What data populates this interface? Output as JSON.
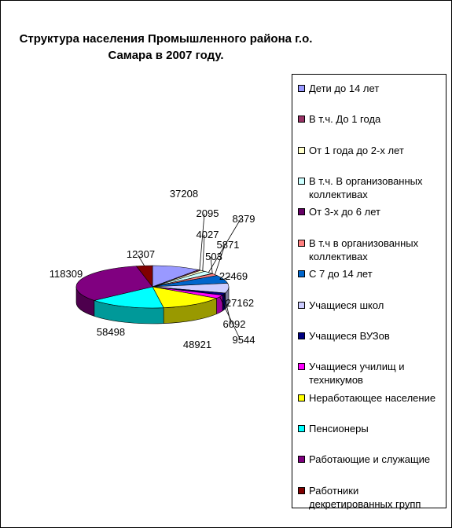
{
  "chart_data": {
    "type": "pie",
    "title": "Структура населения Промышленного района г.о. Самара в 2007 году.",
    "title_lines": [
      "Структура населения Промышленного района г.о.",
      "Самара в 2007 году."
    ],
    "legend_position": "right",
    "three_d": true,
    "slices": [
      {
        "name": "Дети до 14 лет",
        "value": 37208,
        "color": "#9999ff"
      },
      {
        "name": "В т.ч. До 1 года",
        "value": 2095,
        "color": "#993366"
      },
      {
        "name": "От 1 года до 2-х лет",
        "value": 4027,
        "color": "#ffffcc"
      },
      {
        "name": "В т.ч. В организованных коллективах",
        "value": 8379,
        "color": "#ccffff"
      },
      {
        "name": "От 3-х до 6 лет",
        "value": 503,
        "color": "#660066"
      },
      {
        "name": "В т.ч в организованных коллективах",
        "value": 5871,
        "color": "#ff8080"
      },
      {
        "name": "С 7 до 14 лет",
        "value": 22469,
        "color": "#0066cc"
      },
      {
        "name": "Учащиеся школ",
        "value": 27162,
        "color": "#ccccff"
      },
      {
        "name": "Учащиеся ВУЗов",
        "value": 6092,
        "color": "#000080"
      },
      {
        "name": "Учащиеся училищ и техникумов",
        "value": 9544,
        "color": "#ff00ff"
      },
      {
        "name": "Неработающее население",
        "value": 48921,
        "color": "#ffff00"
      },
      {
        "name": "Пенсионеры",
        "value": 58498,
        "color": "#00ffff"
      },
      {
        "name": "Работающие и служащие",
        "value": 118309,
        "color": "#800080"
      },
      {
        "name": "Работники декретированных групп",
        "value": 12307,
        "color": "#800000"
      }
    ]
  }
}
